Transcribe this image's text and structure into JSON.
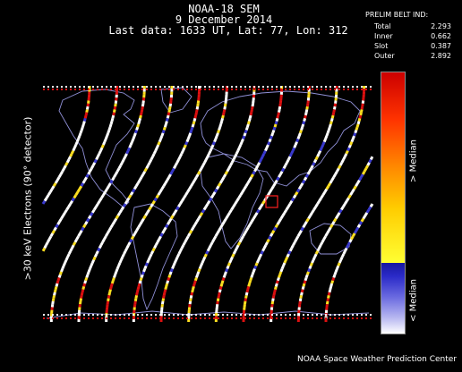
{
  "title": {
    "line1": "NOAA-18 SEM",
    "line2": "9 December 2014",
    "line3": "Last data: 1633 UT, Lat: 77, Lon: 312"
  },
  "belt_index": {
    "header": "PRELIM BELT IND:",
    "rows": [
      {
        "label": "Total",
        "value": "2.293"
      },
      {
        "label": "Inner",
        "value": "0.662"
      },
      {
        "label": "Slot",
        "value": "0.387"
      },
      {
        "label": "Outer",
        "value": "2.892"
      }
    ]
  },
  "y_axis_label": ">30 keV Electrons (90° detector)",
  "colorbar": {
    "upper_label": "> Median",
    "lower_label": "< Median"
  },
  "credit": "NOAA Space Weather Prediction Center",
  "colors": {
    "background": "#000000",
    "coastline": "#8f8fd6",
    "marker": "#ff2020",
    "track_low": "#ffffff",
    "track_mid": "#ffe020",
    "track_high": "#dd1010",
    "track_below": "#3a3ad0"
  },
  "map_area": {
    "lon_range": [
      -180,
      180
    ],
    "lat_range": [
      -90,
      90
    ]
  }
}
